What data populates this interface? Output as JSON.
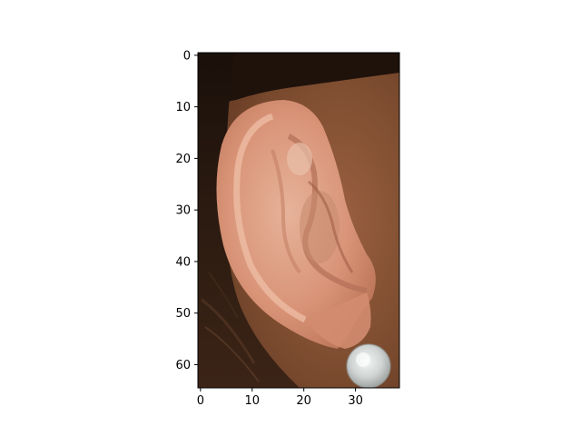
{
  "chart_data": {
    "type": "heatmap",
    "title": "",
    "xlabel": "",
    "ylabel": "",
    "image_description": "close-up photograph of a human ear with a round silver stud earring",
    "xlim": [
      -0.5,
      38.5
    ],
    "ylim": [
      64.5,
      -0.5
    ],
    "y_inverted": true,
    "grid": false,
    "x_ticks": [
      0,
      10,
      20,
      30
    ],
    "x_tick_labels": [
      "0",
      "10",
      "20",
      "30"
    ],
    "y_ticks": [
      0,
      10,
      20,
      30,
      40,
      50,
      60
    ],
    "y_tick_labels": [
      "0",
      "10",
      "20",
      "30",
      "40",
      "50",
      "60"
    ],
    "colors": {
      "hair_dark": "#1e120b",
      "hair_mid": "#3a2417",
      "skin_cheek": "#8a5233",
      "ear_light": "#e8a88d",
      "ear_mid": "#d08a6e",
      "ear_shadow": "#a4614a",
      "earring": "#d9dcdc"
    }
  }
}
